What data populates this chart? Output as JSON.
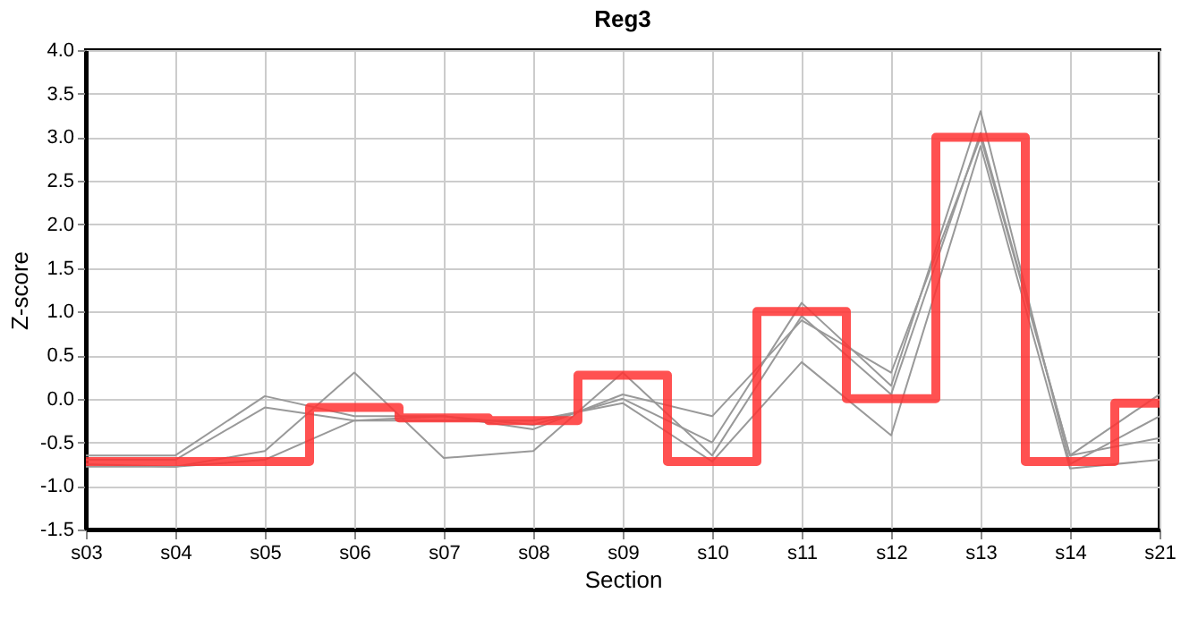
{
  "chart_data": {
    "type": "line",
    "title": "Reg3",
    "xlabel": "Section",
    "ylabel": "Z-score",
    "categories": [
      "s03",
      "s04",
      "s05",
      "s06",
      "s07",
      "s08",
      "s09",
      "s10",
      "s11",
      "s12",
      "s13",
      "s14",
      "s21"
    ],
    "series": [
      {
        "color": "#999999",
        "values": [
          -0.65,
          -0.65,
          0.03,
          -0.2,
          -0.2,
          -0.35,
          0.05,
          -0.2,
          0.9,
          0.3,
          3.0,
          -0.65,
          0.05
        ]
      },
      {
        "color": "#999999",
        "values": [
          -0.7,
          -0.7,
          -0.1,
          -0.25,
          -0.2,
          -0.3,
          0.0,
          -0.5,
          1.1,
          0.15,
          3.3,
          -0.75,
          -0.2
        ]
      },
      {
        "color": "#999999",
        "values": [
          -0.78,
          -0.78,
          -0.6,
          0.3,
          -0.68,
          -0.6,
          0.3,
          -0.65,
          0.95,
          0.05,
          3.05,
          -0.65,
          -0.45
        ]
      },
      {
        "color": "#999999",
        "values": [
          -0.75,
          -0.78,
          -0.7,
          -0.25,
          -0.25,
          -0.25,
          -0.05,
          -0.72,
          0.42,
          -0.42,
          2.9,
          -0.8,
          -0.7
        ]
      },
      {
        "type": "step",
        "color": "#ff3333",
        "values": [
          -0.72,
          -0.72,
          -0.72,
          -0.1,
          -0.22,
          -0.25,
          0.27,
          -0.72,
          1.0,
          0.0,
          3.0,
          -0.72,
          -0.05
        ]
      }
    ],
    "ylim": [
      -1.5,
      4.0
    ],
    "yticks": [
      {
        "value": -1.5,
        "label": "-1.5"
      },
      {
        "value": -1,
        "label": "-1.0"
      },
      {
        "value": -0.5,
        "label": "-0.5"
      },
      {
        "value": 0,
        "label": "0.0"
      },
      {
        "value": 0.5,
        "label": "0.5"
      },
      {
        "value": 1,
        "label": "1.0"
      },
      {
        "value": 1.5,
        "label": "1.5"
      },
      {
        "value": 2,
        "label": "2.0"
      },
      {
        "value": 2.5,
        "label": "2.5"
      },
      {
        "value": 3,
        "label": "3.0"
      },
      {
        "value": 3.5,
        "label": "3.5"
      },
      {
        "value": 4,
        "label": "4.0"
      }
    ],
    "grid": true,
    "marker": "none",
    "line_style": "solid"
  }
}
